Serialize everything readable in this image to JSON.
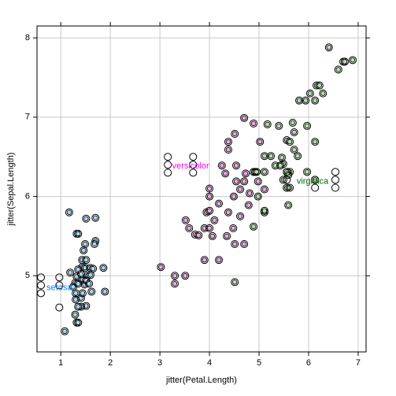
{
  "chart_data": {
    "type": "scatter",
    "x_label": "jitter(Petal.Length)",
    "y_label": "jitter(Sepal.Length)",
    "xlim": [
      0.52,
      7.16
    ],
    "ylim": [
      4.04,
      8.15
    ],
    "xticks": [
      1,
      2,
      3,
      4,
      5,
      6,
      7
    ],
    "yticks": [
      5,
      6,
      7,
      8
    ],
    "grid": true,
    "series": [
      {
        "name": "setosa",
        "color": "#a6d8f5",
        "x": [
          1.17,
          1.32,
          1.35,
          1.51,
          1.7,
          1.7,
          1.68,
          1.49,
          1.46,
          1.43,
          1.51,
          1.43,
          1.49,
          1.59,
          1.86,
          1.65,
          1.35,
          1.19,
          1.32,
          1.41,
          1.54,
          1.6,
          1.44,
          1.29,
          1.35,
          1.48,
          1.51,
          1.57,
          1.25,
          1.62,
          1.89,
          1.3,
          1.41,
          1.51,
          1.41,
          1.35,
          1.29,
          1.32,
          1.35,
          1.08,
          1.3,
          1.44
        ],
        "values": [
          5.8,
          5.53,
          5.53,
          5.72,
          5.73,
          5.44,
          5.4,
          5.4,
          5.32,
          5.2,
          5.2,
          5.11,
          5.1,
          5.1,
          5.1,
          5.09,
          5.08,
          5.04,
          4.99,
          5.02,
          5.0,
          5.01,
          4.95,
          4.91,
          4.9,
          4.89,
          4.94,
          4.9,
          4.86,
          4.8,
          4.8,
          4.7,
          4.72,
          4.62,
          4.61,
          4.61,
          4.51,
          4.41,
          4.41,
          4.3,
          4.78,
          4.78
        ]
      },
      {
        "name": "versicolor",
        "color": "#f3a6e6",
        "x": [
          3.02,
          3.3,
          3.3,
          3.51,
          3.52,
          3.59,
          3.71,
          3.78,
          3.9,
          3.94,
          4.0,
          4.0,
          4.0,
          3.9,
          4.0,
          4.06,
          4.1,
          4.19,
          4.25,
          4.32,
          4.38,
          4.38,
          4.38,
          4.35,
          4.48,
          4.51,
          4.49,
          4.54,
          4.51,
          4.54,
          4.62,
          4.7,
          4.7,
          4.73,
          4.79,
          4.89,
          4.89,
          4.98,
          5.02,
          5.11,
          4.81,
          4.62,
          4.7,
          4.19
        ],
        "values": [
          5.11,
          5.0,
          4.9,
          5.0,
          5.7,
          5.6,
          5.52,
          5.51,
          5.6,
          5.8,
          5.82,
          6.1,
          6.0,
          5.2,
          5.6,
          5.5,
          5.7,
          5.91,
          6.39,
          6.29,
          6.69,
          6.59,
          5.8,
          5.5,
          5.6,
          5.4,
          6.0,
          6.19,
          6.79,
          6.39,
          6.09,
          6.19,
          6.99,
          6.29,
          5.89,
          6.92,
          6.31,
          6.19,
          6.69,
          6.09,
          6.04,
          5.75,
          5.4,
          5.2
        ]
      },
      {
        "name": "virginica",
        "color": "#b4e0ac",
        "x": [
          4.51,
          4.89,
          5.11,
          5.11,
          4.98,
          4.92,
          4.95,
          5.11,
          5.11,
          5.17,
          5.24,
          5.33,
          5.4,
          5.46,
          5.49,
          5.49,
          5.56,
          5.62,
          5.56,
          5.62,
          5.68,
          5.71,
          5.78,
          5.81,
          5.94,
          5.97,
          6.03,
          6.13,
          6.16,
          6.22,
          6.29,
          6.13,
          6.41,
          6.6,
          6.7,
          6.73,
          6.89,
          5.62,
          5.59,
          5.71,
          5.97,
          5.43,
          6.13,
          5.56,
          5.59
        ],
        "values": [
          4.92,
          5.62,
          5.8,
          5.82,
          6.0,
          6.31,
          6.31,
          6.31,
          6.51,
          6.91,
          6.51,
          6.39,
          6.89,
          6.49,
          6.41,
          6.21,
          6.11,
          6.31,
          6.71,
          6.69,
          6.93,
          6.59,
          6.51,
          7.21,
          7.21,
          6.31,
          7.3,
          7.21,
          7.4,
          7.4,
          7.3,
          6.21,
          7.88,
          7.6,
          7.7,
          7.7,
          7.72,
          6.11,
          5.89,
          6.81,
          6.89,
          6.39,
          6.69,
          6.31,
          6.27
        ]
      },
      {
        "color": "#000000",
        "x": [
          0.6,
          0.6,
          0.6,
          0.97,
          0.97,
          0.97,
          3.16,
          3.16,
          3.16,
          3.67,
          3.67,
          3.67,
          5.56,
          5.56,
          5.56,
          6.54,
          6.54,
          6.54,
          6.13,
          6.13
        ],
        "values": [
          4.98,
          4.88,
          4.78,
          4.98,
          4.88,
          4.6,
          6.5,
          6.4,
          6.3,
          6.5,
          6.4,
          6.3,
          6.31,
          6.21,
          6.11,
          6.31,
          6.21,
          6.11,
          6.21,
          6.11
        ]
      }
    ],
    "annotations": [
      {
        "text": "setosa",
        "x": 0.97,
        "y": 4.85,
        "color": "#0080ff"
      },
      {
        "text": "versicolor",
        "x": 3.62,
        "y": 6.38,
        "color": "#ff00ff"
      },
      {
        "text": "virginica",
        "x": 6.08,
        "y": 6.19,
        "color": "#006400"
      }
    ]
  }
}
